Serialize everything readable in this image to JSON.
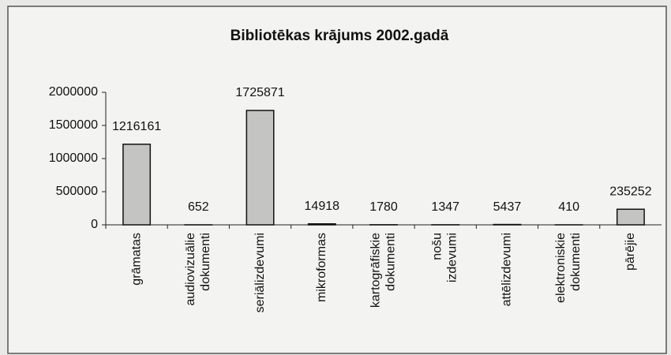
{
  "chart_data": {
    "type": "bar",
    "title": "Bibliotēkas krājums 2002.gadā",
    "categories": [
      "grāmatas",
      "audiovizuālie dokumenti",
      "seriālizdevumi",
      "mikroformas",
      "kartogrāfiskie dokumenti",
      "nošu izdevumi",
      "attēlizdevumi",
      "elektroniskie dokumenti",
      "pārējie"
    ],
    "values": [
      1216161,
      652,
      1725871,
      14918,
      1780,
      1347,
      5437,
      410,
      235252
    ],
    "color": "#c4c4c2",
    "ylim": [
      0,
      2000000
    ],
    "yticks": [
      0,
      500000,
      1000000,
      1500000,
      2000000
    ],
    "grid": false
  }
}
